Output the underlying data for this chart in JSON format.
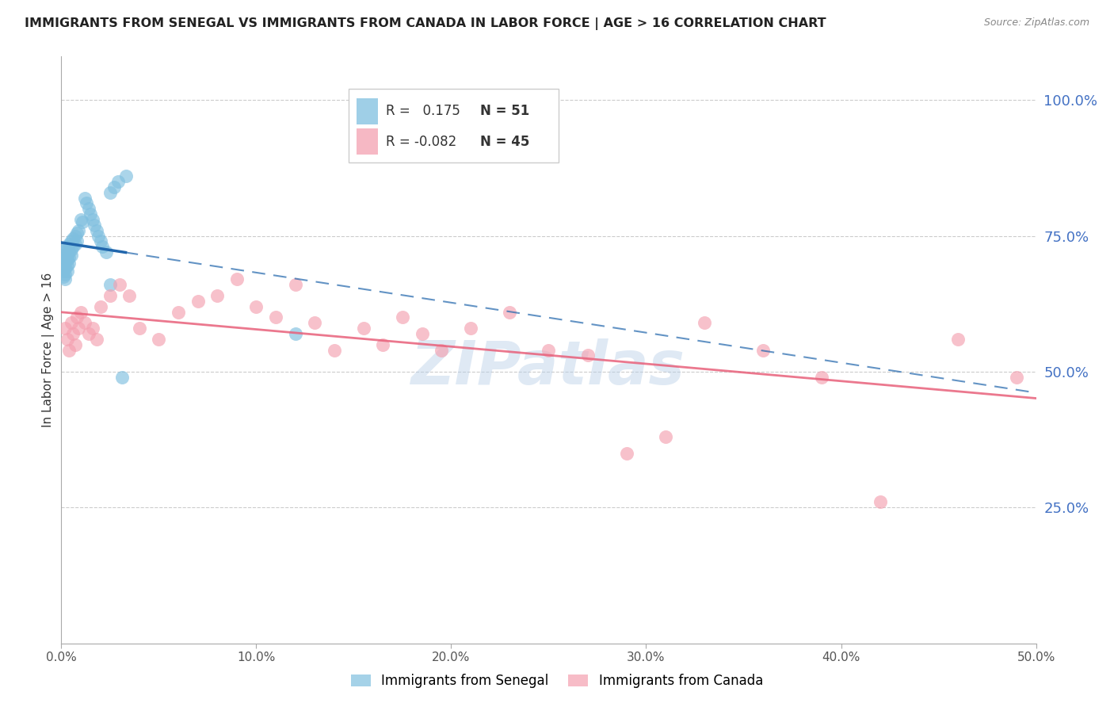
{
  "title": "IMMIGRANTS FROM SENEGAL VS IMMIGRANTS FROM CANADA IN LABOR FORCE | AGE > 16 CORRELATION CHART",
  "source": "Source: ZipAtlas.com",
  "ylabel": "In Labor Force | Age > 16",
  "xmin": 0.0,
  "xmax": 0.5,
  "ymin": 0.0,
  "ymax": 1.08,
  "xtick_labels": [
    "0.0%",
    "10.0%",
    "20.0%",
    "30.0%",
    "40.0%",
    "50.0%"
  ],
  "xtick_vals": [
    0.0,
    0.1,
    0.2,
    0.3,
    0.4,
    0.5
  ],
  "ytick_labels_right": [
    "25.0%",
    "50.0%",
    "75.0%",
    "100.0%"
  ],
  "ytick_vals": [
    0.25,
    0.5,
    0.75,
    1.0
  ],
  "senegal_R": 0.175,
  "senegal_N": 51,
  "canada_R": -0.082,
  "canada_N": 45,
  "senegal_color": "#7fbfdf",
  "canada_color": "#f4a0b0",
  "senegal_trend_color": "#2166ac",
  "canada_trend_color": "#e8607a",
  "watermark": "ZIPatlas",
  "senegal_x": [
    0.001,
    0.001,
    0.001,
    0.001,
    0.001,
    0.001,
    0.002,
    0.002,
    0.002,
    0.002,
    0.002,
    0.002,
    0.003,
    0.003,
    0.003,
    0.003,
    0.003,
    0.004,
    0.004,
    0.004,
    0.004,
    0.005,
    0.005,
    0.005,
    0.006,
    0.006,
    0.007,
    0.007,
    0.008,
    0.008,
    0.009,
    0.01,
    0.011,
    0.012,
    0.013,
    0.014,
    0.015,
    0.016,
    0.017,
    0.018,
    0.019,
    0.02,
    0.021,
    0.023,
    0.025,
    0.027,
    0.029,
    0.031,
    0.033,
    0.12,
    0.025
  ],
  "senegal_y": [
    0.725,
    0.715,
    0.705,
    0.695,
    0.685,
    0.675,
    0.72,
    0.71,
    0.7,
    0.69,
    0.68,
    0.67,
    0.73,
    0.715,
    0.705,
    0.695,
    0.685,
    0.735,
    0.72,
    0.71,
    0.7,
    0.74,
    0.725,
    0.715,
    0.745,
    0.73,
    0.75,
    0.735,
    0.755,
    0.74,
    0.76,
    0.78,
    0.775,
    0.82,
    0.81,
    0.8,
    0.79,
    0.78,
    0.77,
    0.76,
    0.75,
    0.74,
    0.73,
    0.72,
    0.83,
    0.84,
    0.85,
    0.49,
    0.86,
    0.57,
    0.66
  ],
  "canada_x": [
    0.002,
    0.003,
    0.004,
    0.005,
    0.006,
    0.007,
    0.008,
    0.009,
    0.01,
    0.012,
    0.014,
    0.016,
    0.018,
    0.02,
    0.025,
    0.03,
    0.035,
    0.04,
    0.05,
    0.06,
    0.07,
    0.08,
    0.09,
    0.1,
    0.11,
    0.12,
    0.13,
    0.14,
    0.155,
    0.165,
    0.175,
    0.185,
    0.195,
    0.21,
    0.23,
    0.25,
    0.27,
    0.29,
    0.31,
    0.33,
    0.36,
    0.39,
    0.42,
    0.46,
    0.49
  ],
  "canada_y": [
    0.58,
    0.56,
    0.54,
    0.59,
    0.57,
    0.55,
    0.6,
    0.58,
    0.61,
    0.59,
    0.57,
    0.58,
    0.56,
    0.62,
    0.64,
    0.66,
    0.64,
    0.58,
    0.56,
    0.61,
    0.63,
    0.64,
    0.67,
    0.62,
    0.6,
    0.66,
    0.59,
    0.54,
    0.58,
    0.55,
    0.6,
    0.57,
    0.54,
    0.58,
    0.61,
    0.54,
    0.53,
    0.35,
    0.38,
    0.59,
    0.54,
    0.49,
    0.26,
    0.56,
    0.49
  ]
}
